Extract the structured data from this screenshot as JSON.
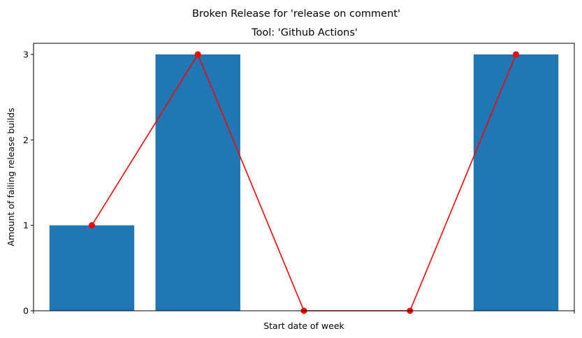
{
  "chart_data": {
    "type": "bar",
    "title": "Broken Release for 'release on comment'",
    "subtitle": "Tool: 'Github Actions'",
    "xlabel": "Start date of week",
    "ylabel": "Amount of failing release builds",
    "categories": [
      "",
      "",
      "",
      "",
      ""
    ],
    "values": [
      1,
      3,
      0,
      0,
      3
    ],
    "line_values": [
      1,
      3,
      0,
      0,
      3
    ],
    "ylim": [
      0,
      3.13
    ],
    "yticks": [
      0,
      1,
      2,
      3
    ],
    "grid": false,
    "bar_color": "#1f77b4",
    "line_color": "#ff0000"
  }
}
